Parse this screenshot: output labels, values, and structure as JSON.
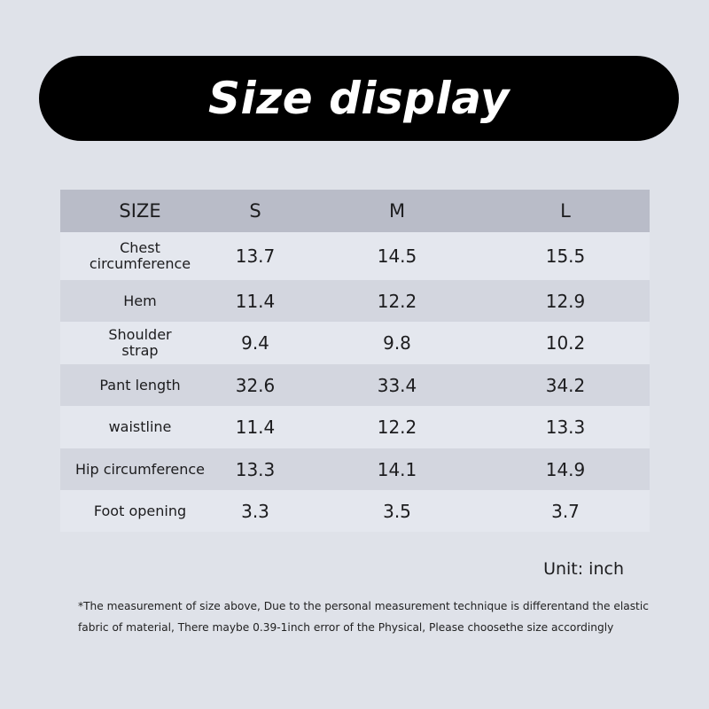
{
  "title": "Size display",
  "table": {
    "headers": [
      "SIZE",
      "S",
      "M",
      "L"
    ],
    "rows": [
      {
        "label": "Chest circumference",
        "values": [
          "13.7",
          "14.5",
          "15.5"
        ]
      },
      {
        "label": "Hem",
        "values": [
          "11.4",
          "12.2",
          "12.9"
        ]
      },
      {
        "label": "Shoulder strap",
        "values": [
          "9.4",
          "9.8",
          "10.2"
        ]
      },
      {
        "label": "Pant length",
        "values": [
          "32.6",
          "33.4",
          "34.2"
        ]
      },
      {
        "label": "waistline",
        "values": [
          "11.4",
          "12.2",
          "13.3"
        ]
      },
      {
        "label": "Hip circumference",
        "values": [
          "13.3",
          "14.1",
          "14.9"
        ]
      },
      {
        "label": "Foot opening",
        "values": [
          "3.3",
          "3.5",
          "3.7"
        ]
      }
    ]
  },
  "unit": "Unit: inch",
  "note": "*The measurement of size above, Due to the personal measurement technique is differentand the elastic fabric of material, There maybe 0.39-1inch error of the Physical, Please choosethe size accordingly",
  "colors": {
    "background": "#dfe2e9",
    "banner": "#000000",
    "header_row": "#b9bcc8",
    "row_light": "#e4e7ee",
    "row_dark": "#d3d6df"
  }
}
